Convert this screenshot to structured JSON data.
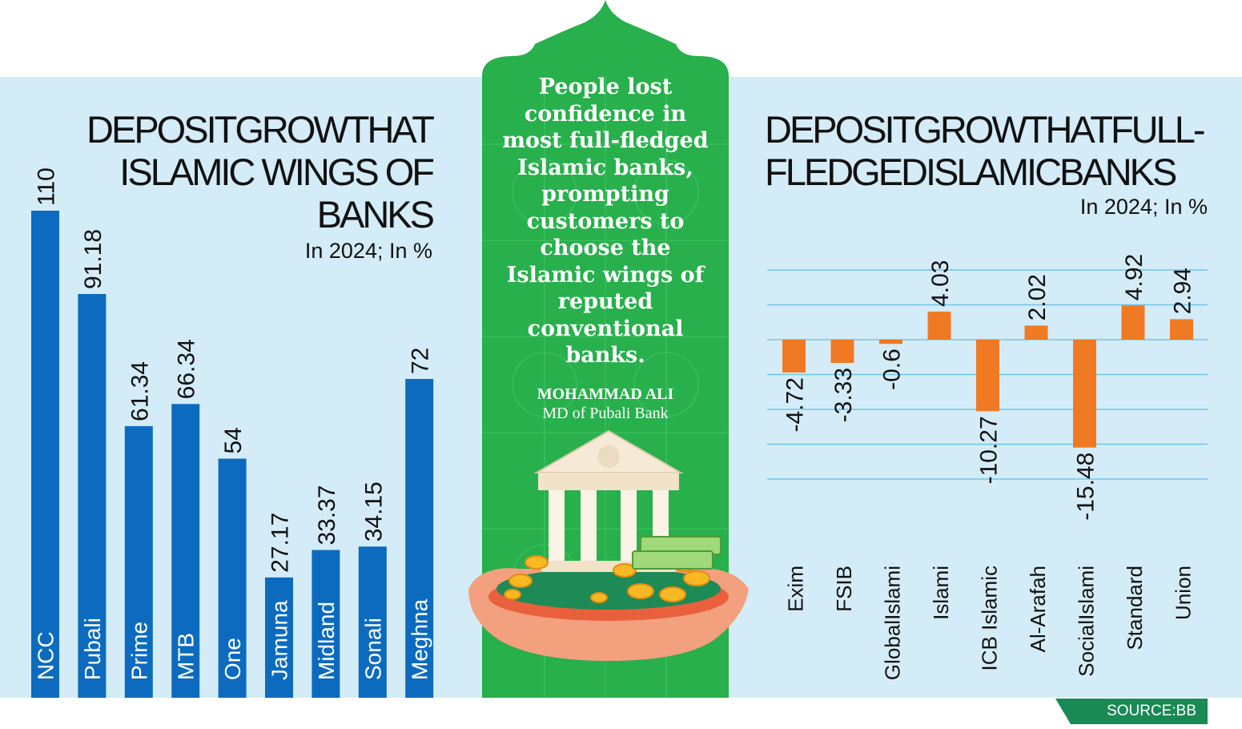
{
  "left_chart": {
    "title_lines": [
      "DEPOSITGROWTHAT",
      "ISLAMIC WINGS OF",
      "BANKS"
    ],
    "subtitle": "In 2024; In %"
  },
  "right_chart": {
    "title_lines": [
      "DEPOSITGROWTHATFULL-",
      "FLEDGEDISLAMICBANKS"
    ],
    "subtitle": "In 2024; In %"
  },
  "quote": {
    "text": "People lost confidence in most full-fledged Islamic banks, prompting customers to choose the Islamic wings of reputed conventional banks.",
    "author": "MOHAMMAD ALI",
    "role": "MD of Pubali Bank"
  },
  "source": "SOURCE:BB",
  "colors": {
    "background": "#d4ecf7",
    "left_bars": "#0c6bbf",
    "right_bars": "#f07a24",
    "center_panel": "#27b04b",
    "source_badge": "#1a8a54"
  },
  "chart_data": [
    {
      "type": "bar",
      "title": "DEPOSITGROWTHAT ISLAMIC WINGS OF BANKS",
      "subtitle": "In 2024; In %",
      "categories": [
        "NCC",
        "Pubali",
        "Prime",
        "MTB",
        "One",
        "Jamuna",
        "Midland",
        "Sonali",
        "Meghna"
      ],
      "values": [
        110,
        91.18,
        61.34,
        66.34,
        54,
        27.17,
        33.37,
        34.15,
        72
      ],
      "value_labels": [
        "110",
        "91.18",
        "61.34",
        "66.34",
        "54",
        "27.17",
        "33.37",
        "34.15",
        "72"
      ],
      "ylim": [
        0,
        110
      ],
      "grid": false
    },
    {
      "type": "bar",
      "title": "DEPOSITGROWTHATFULL-FLEDGEDISLAMICBANKS",
      "subtitle": "In 2024; In %",
      "categories": [
        "Exim",
        "FSIB",
        "GlobalIslami",
        "Islami",
        "ICB Islamic",
        "Al-Arafah",
        "SocialIslami",
        "Standard",
        "Union"
      ],
      "values": [
        -4.72,
        -3.33,
        -0.6,
        4.03,
        -10.27,
        2.02,
        -15.48,
        4.92,
        2.94
      ],
      "value_labels": [
        "-4.72",
        "-3.33",
        "-0.6",
        "4.03",
        "-10.27",
        "2.02",
        "-15.48",
        "4.92",
        "2.94"
      ],
      "ylim": [
        -20,
        10
      ],
      "grid": true
    }
  ]
}
